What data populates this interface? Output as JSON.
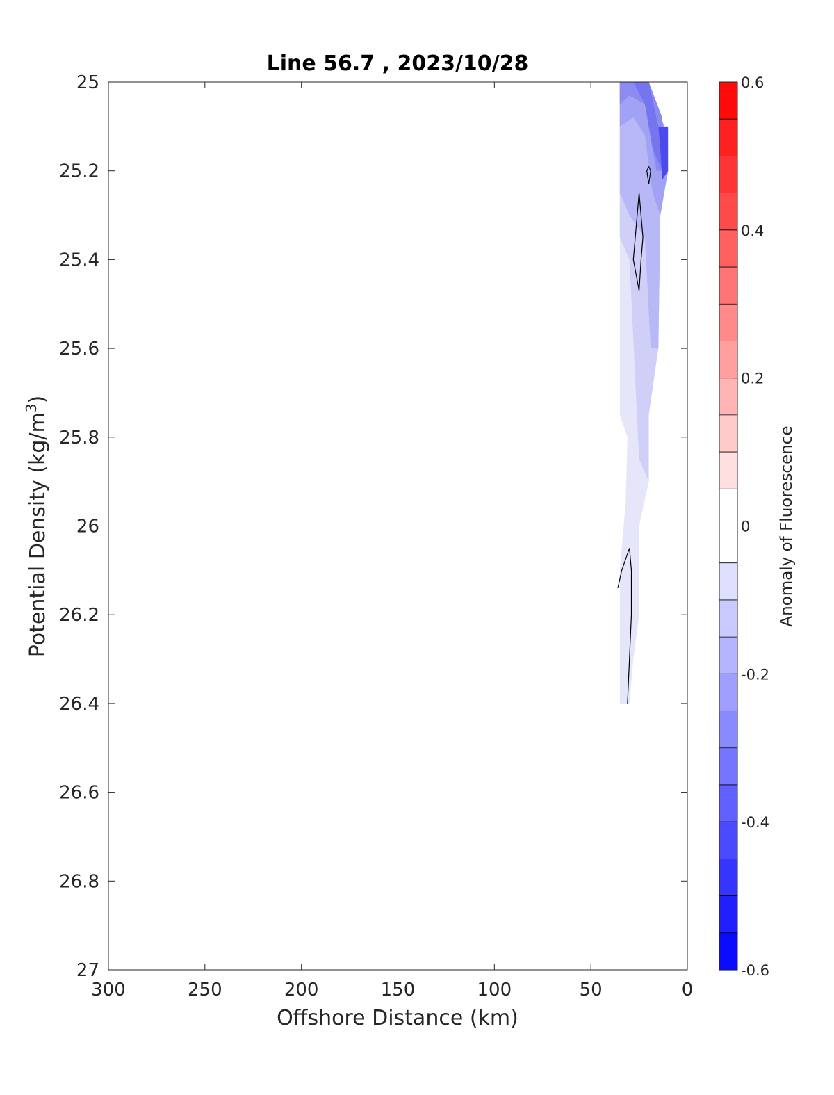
{
  "chart_data": {
    "type": "contour",
    "title": "Line 56.7 , 2023/10/28",
    "xlabel": "Offshore Distance (km)",
    "ylabel": "Potential Density (kg/m",
    "ylabel_sup": "3",
    "ylabel_close": ")",
    "xlim": [
      300,
      0
    ],
    "ylim": [
      25,
      27
    ],
    "x_reversed": true,
    "y_reversed": true,
    "xticks": [
      300,
      250,
      200,
      150,
      100,
      50,
      0
    ],
    "xtick_labels": [
      "300",
      "250",
      "200",
      "150",
      "100",
      "50",
      "0"
    ],
    "yticks": [
      25,
      25.2,
      25.4,
      25.6,
      25.8,
      26,
      26.2,
      26.4,
      26.6,
      26.8,
      27
    ],
    "ytick_labels": [
      "25",
      "25.2",
      "25.4",
      "25.6",
      "25.8",
      "26",
      "26.2",
      "26.4",
      "26.6",
      "26.8",
      "27"
    ],
    "colorbar": {
      "label": "Anomaly of Fluorescence",
      "range": [
        -0.6,
        0.6
      ],
      "ticks": [
        0.6,
        0.4,
        0.2,
        0,
        -0.2,
        -0.4,
        -0.6
      ],
      "tick_labels": [
        "0.6",
        "0.4",
        "0.2",
        "0",
        "-0.2",
        "-0.4",
        "-0.6"
      ],
      "levels": 24,
      "colormap": [
        "#0000ff",
        "#ffffff",
        "#ff0000"
      ]
    },
    "grid": false,
    "filled_regions": [
      {
        "level": -0.075,
        "color": "#e6e6fa",
        "points": [
          [
            35,
            25
          ],
          [
            20,
            25
          ],
          [
            12,
            25.1
          ],
          [
            10,
            25.2
          ],
          [
            15,
            25.3
          ],
          [
            15,
            25.6
          ],
          [
            20,
            25.7
          ],
          [
            20,
            25.9
          ],
          [
            25,
            26
          ],
          [
            25,
            26.2
          ],
          [
            28,
            26.3
          ],
          [
            30,
            26.4
          ],
          [
            35,
            26.4
          ],
          [
            35,
            26.1
          ],
          [
            32,
            25.95
          ],
          [
            31,
            25.8
          ],
          [
            35,
            25.75
          ]
        ]
      },
      {
        "level": -0.125,
        "color": "#cfcff8",
        "points": [
          [
            35,
            25
          ],
          [
            20,
            25
          ],
          [
            12,
            25.1
          ],
          [
            10,
            25.2
          ],
          [
            14,
            25.3
          ],
          [
            15,
            25.6
          ],
          [
            20,
            25.75
          ],
          [
            20,
            25.9
          ],
          [
            25,
            25.85
          ],
          [
            30,
            25.4
          ],
          [
            35,
            25.35
          ]
        ]
      },
      {
        "level": -0.175,
        "color": "#b8b8f6",
        "points": [
          [
            35,
            25
          ],
          [
            20,
            25
          ],
          [
            12,
            25.1
          ],
          [
            10,
            25.2
          ],
          [
            14,
            25.3
          ],
          [
            15,
            25.6
          ],
          [
            19,
            25.6
          ],
          [
            22,
            25.35
          ],
          [
            30,
            25.3
          ],
          [
            35,
            25.25
          ]
        ]
      },
      {
        "level": -0.225,
        "color": "#a2a2f4",
        "points": [
          [
            35,
            25
          ],
          [
            20,
            25
          ],
          [
            12,
            25.1
          ],
          [
            10,
            25.2
          ],
          [
            14,
            25.3
          ],
          [
            18,
            25.25
          ],
          [
            22,
            25.12
          ],
          [
            28,
            25.08
          ],
          [
            35,
            25.1
          ]
        ]
      },
      {
        "level": -0.275,
        "color": "#8b8bf2",
        "points": [
          [
            35,
            25
          ],
          [
            20,
            25
          ],
          [
            13,
            25.08
          ],
          [
            12,
            25.2
          ],
          [
            16,
            25.2
          ],
          [
            22,
            25.05
          ],
          [
            30,
            25.03
          ],
          [
            35,
            25.05
          ]
        ]
      },
      {
        "level": -0.325,
        "color": "#7575f0",
        "points": [
          [
            34,
            25
          ],
          [
            20,
            25
          ],
          [
            15,
            25.1
          ],
          [
            13,
            25.2
          ],
          [
            18,
            25.15
          ],
          [
            22,
            25.05
          ],
          [
            28,
            25.0
          ]
        ]
      },
      {
        "level": -0.4,
        "color": "#4a4aee",
        "points": [
          [
            15,
            25.1
          ],
          [
            10,
            25.1
          ],
          [
            10,
            25.2
          ],
          [
            13,
            25.22
          ],
          [
            14,
            25.15
          ]
        ]
      }
    ],
    "contour_lines": [
      {
        "level": 0,
        "points": [
          [
            20,
            25.19
          ],
          [
            21,
            25.2
          ],
          [
            20,
            25.23
          ],
          [
            19,
            25.2
          ],
          [
            20,
            25.19
          ]
        ]
      },
      {
        "level": 0,
        "points": [
          [
            25,
            25.25
          ],
          [
            23,
            25.35
          ],
          [
            24,
            25.4
          ],
          [
            25,
            25.47
          ],
          [
            28,
            25.4
          ],
          [
            26,
            25.3
          ],
          [
            25,
            25.25
          ]
        ]
      },
      {
        "level": 0,
        "points": [
          [
            36,
            26.14
          ],
          [
            34,
            26.1
          ],
          [
            30,
            26.05
          ],
          [
            29,
            26.1
          ],
          [
            29,
            26.2
          ],
          [
            30,
            26.3
          ],
          [
            31,
            26.4
          ]
        ]
      }
    ]
  }
}
